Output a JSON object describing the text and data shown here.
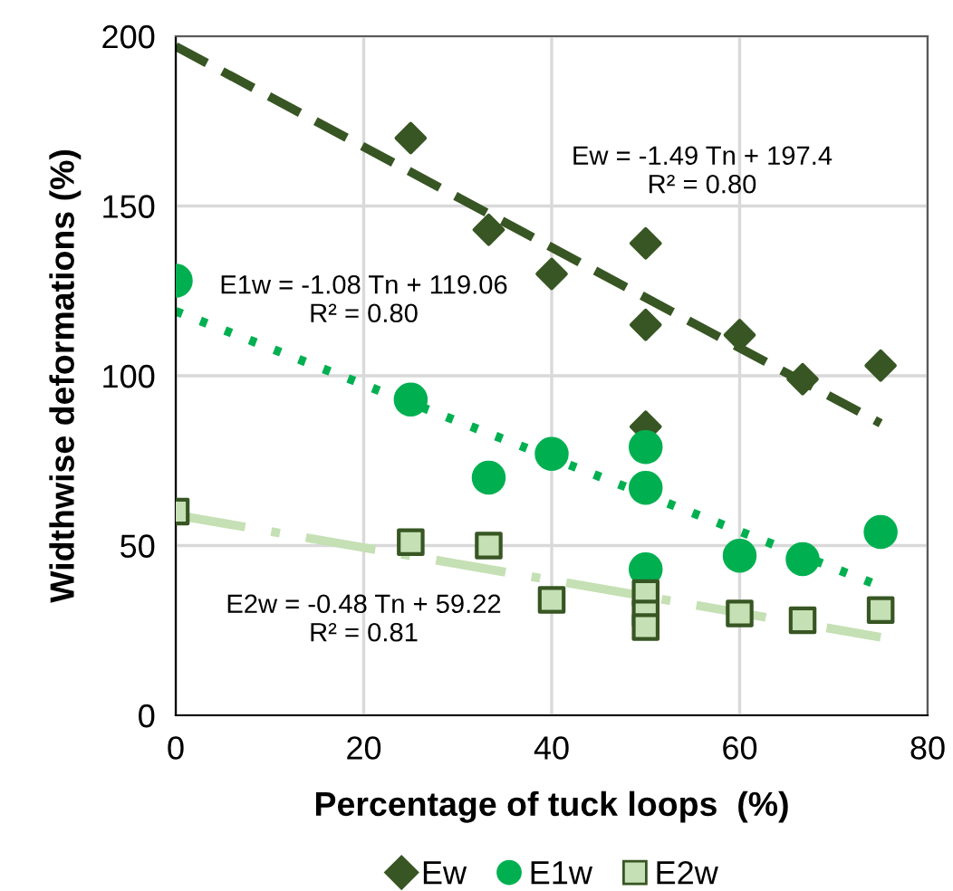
{
  "chart_data": {
    "type": "scatter",
    "xlabel": "Percentage of tuck loops  (%)",
    "ylabel": "Widthwise deformations (%)",
    "xlim": [
      0,
      80
    ],
    "xticks": [
      0,
      20,
      40,
      60,
      80
    ],
    "ylim": [
      0,
      200
    ],
    "yticks": [
      0,
      50,
      100,
      150,
      200
    ],
    "grid": true,
    "legend": "bottom",
    "series": [
      {
        "name": "Ew",
        "color": "#375623",
        "marker": "diamond",
        "x": [
          25,
          33.3,
          40,
          50,
          50,
          50,
          60,
          66.7,
          75
        ],
        "values": [
          170,
          143,
          130,
          139,
          115,
          85,
          112,
          99,
          103
        ]
      },
      {
        "name": "E1w",
        "color": "#00b050",
        "marker": "circle",
        "x": [
          0,
          25,
          33.3,
          40,
          50,
          50,
          50,
          60,
          66.7,
          75
        ],
        "values": [
          128,
          93,
          70,
          77,
          79,
          67,
          43,
          47,
          46,
          54
        ]
      },
      {
        "name": "E2w",
        "color": "#c5e0b4",
        "marker": "square",
        "x": [
          0,
          25,
          33.3,
          40,
          50,
          50,
          50,
          60,
          66.7,
          75
        ],
        "values": [
          60,
          51,
          50,
          34,
          36,
          30,
          26,
          30,
          28,
          31
        ]
      },
      {
        "type": "line",
        "color": "#375623",
        "line_style": "dashed",
        "x": [
          0,
          75
        ],
        "values": [
          197,
          86
        ]
      },
      {
        "type": "line",
        "color": "#00b050",
        "line_style": "dotted",
        "x": [
          0,
          75
        ],
        "values": [
          119,
          38
        ]
      },
      {
        "type": "line",
        "color": "#c5e0b4",
        "line_style": "dashdot",
        "x": [
          0,
          75
        ],
        "values": [
          59,
          23
        ]
      }
    ],
    "annotations": [
      "Ew = -1.49 Tn + 197.4\nR² = 0.80",
      "E1w = -1.08 Tn + 119.06\nR² = 0.80",
      "E2w = -0.48 Tn + 59.22\nR² = 0.81"
    ]
  }
}
